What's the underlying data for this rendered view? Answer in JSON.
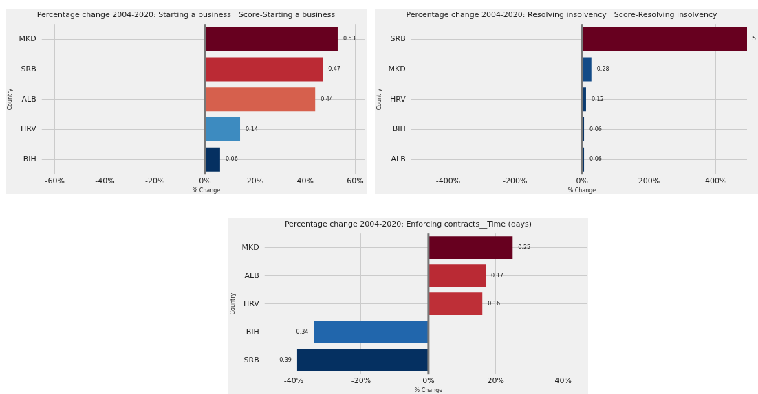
{
  "chart_data": [
    {
      "type": "bar",
      "orientation": "horizontal",
      "title": "Percentage change 2004-2020: Starting a business__Score-Starting a business",
      "xlabel": "% Change",
      "ylabel": "Country",
      "categories": [
        "MKD",
        "SRB",
        "ALB",
        "HRV",
        "BIH"
      ],
      "values": [
        0.53,
        0.47,
        0.44,
        0.14,
        0.06
      ],
      "colors": [
        "#67001f",
        "#bb2a34",
        "#d6604d",
        "#3d8bc0",
        "#053061"
      ],
      "xlim": [
        -0.63,
        0.64
      ],
      "xticks": [
        {
          "value": -0.6,
          "label": "-60%"
        },
        {
          "value": -0.4,
          "label": "-40%"
        },
        {
          "value": -0.2,
          "label": "-20%"
        },
        {
          "value": 0,
          "label": "0%"
        },
        {
          "value": 0.2,
          "label": "20%"
        },
        {
          "value": 0.4,
          "label": "40%"
        },
        {
          "value": 0.6,
          "label": "60%"
        }
      ],
      "grid": true,
      "data_labels": true,
      "ref_lines": [
        {
          "axis": "x",
          "value": 0,
          "color": "#777777"
        }
      ]
    },
    {
      "type": "bar",
      "orientation": "horizontal",
      "title": "Percentage change 2004-2020: Resolving insolvency__Score-Resolving insolvency",
      "xlabel": "% Change",
      "ylabel": "Country",
      "categories": [
        "SRB",
        "MKD",
        "HRV",
        "BIH",
        "ALB"
      ],
      "values": [
        4.93,
        0.28,
        0.12,
        0.06,
        0.06
      ],
      "value_labels": [
        "5.",
        "0.28",
        "0.12",
        "0.06",
        "0.06"
      ],
      "colors": [
        "#67001f",
        "#134b87",
        "#0b3b70",
        "#073466",
        "#073466"
      ],
      "xlim": [
        -4.94,
        4.93
      ],
      "xticks": [
        {
          "value": -4,
          "label": "-400%"
        },
        {
          "value": -2,
          "label": "-200%"
        },
        {
          "value": 0,
          "label": "0%"
        },
        {
          "value": 2,
          "label": "200%"
        },
        {
          "value": 4,
          "label": "400%"
        }
      ],
      "grid": true,
      "ref_lines": [
        {
          "axis": "x",
          "value": 0,
          "color": "#777777"
        }
      ]
    },
    {
      "type": "bar",
      "orientation": "horizontal",
      "title": "Percentage change 2004-2020: Enforcing contracts__Time (days)",
      "xlabel": "% Change",
      "ylabel": "Country",
      "categories": [
        "MKD",
        "ALB",
        "HRV",
        "BIH",
        "SRB"
      ],
      "values": [
        0.25,
        0.17,
        0.16,
        -0.34,
        -0.39
      ],
      "colors": [
        "#67001f",
        "#ba2a34",
        "#be2f37",
        "#2166ac",
        "#053061"
      ],
      "xlim": [
        -0.47,
        0.47
      ],
      "xticks": [
        {
          "value": -0.4,
          "label": "-40%"
        },
        {
          "value": -0.2,
          "label": "-20%"
        },
        {
          "value": 0,
          "label": "0%"
        },
        {
          "value": 0.2,
          "label": "20%"
        },
        {
          "value": 0.4,
          "label": "40%"
        }
      ],
      "grid": true,
      "data_labels": true,
      "ref_lines": [
        {
          "axis": "x",
          "value": 0,
          "color": "#777777"
        }
      ]
    }
  ]
}
